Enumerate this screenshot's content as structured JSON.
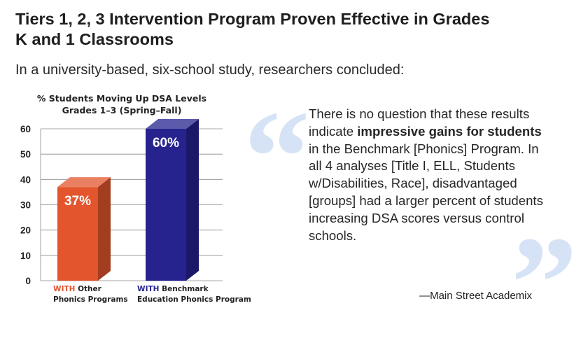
{
  "header": {
    "title": "Tiers 1, 2, 3 Intervention Program Proven Effective in Grades K and 1 Classrooms",
    "subtitle": "In a university-based, six-school study, researchers concluded:"
  },
  "quote": {
    "open_mark": "“",
    "close_mark": "”",
    "part1": "There is no question that these results indicate ",
    "emphasis": "impressive gains for students",
    "part2": " in the Benchmark [Phonics] Program. In all 4 analyses [Title I, ELL, Students w/Disabilities, Race], disadvantaged [groups] had a larger percent of students increasing DSA scores versus control schools.",
    "attribution": "—Main Street Academix"
  },
  "colors": {
    "other": "#e2552d",
    "benchmark": "#26238f",
    "quote_mark": "#d6e3f6"
  },
  "chart_data": {
    "type": "bar",
    "title": "% Students Moving Up DSA Levels",
    "subtitle": "Grades 1–3 (Spring–Fall)",
    "ylim": [
      0,
      60
    ],
    "yticks": [
      "0",
      "10",
      "20",
      "30",
      "40",
      "50",
      "60"
    ],
    "grid": true,
    "categories": [
      {
        "highlight": "WITH",
        "line1_rest": " Other",
        "line2": "Phonics Programs"
      },
      {
        "highlight": "WITH",
        "line1_rest": " Benchmark",
        "line2": "Education Phonics Program"
      }
    ],
    "values": [
      37,
      60
    ],
    "value_labels": [
      "37%",
      "60%"
    ]
  }
}
